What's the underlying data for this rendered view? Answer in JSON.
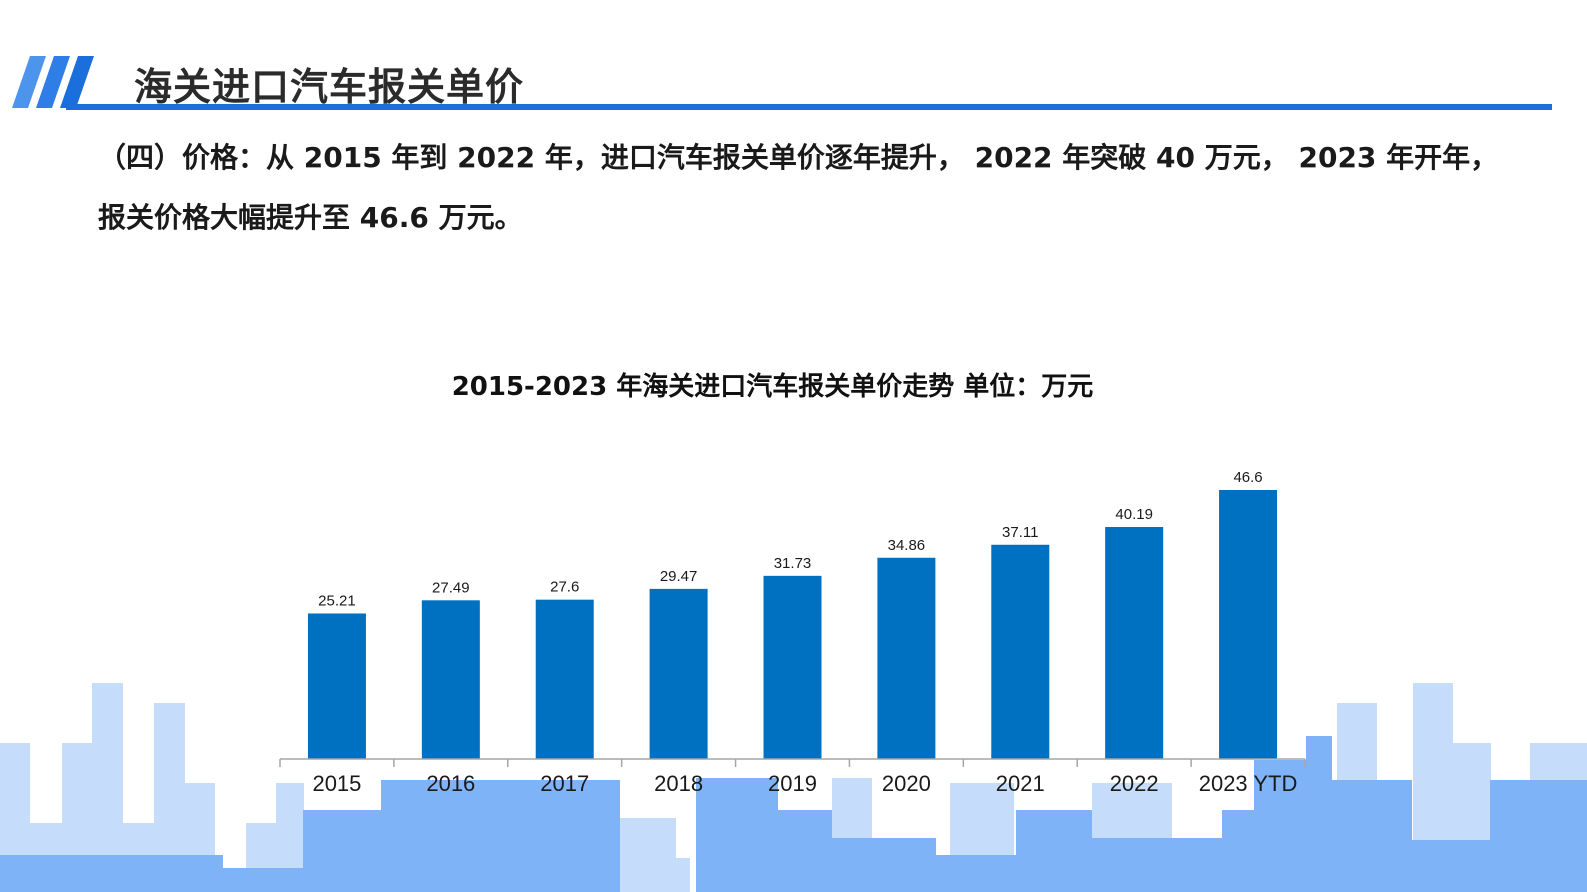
{
  "header": {
    "title": "海关进口汽车报关单价"
  },
  "intro": {
    "text": "（四）价格：从 2015 年到 2022 年，进口汽车报关单价逐年提升， 2022 年突破 40 万元， 2023 年开年，报关价格大幅提升至 46.6 万元。"
  },
  "colors": {
    "accent": "#1b6fdc",
    "bar": "#0070c0",
    "skyline_light": "#c6dcfb",
    "skyline_mid": "#7eb3f7"
  },
  "chart_data": {
    "type": "bar",
    "title": "2015-2023 年海关进口汽车报关单价走势 单位：万元",
    "categories": [
      "2015",
      "2016",
      "2017",
      "2018",
      "2019",
      "2020",
      "2021",
      "2022",
      "2023 YTD"
    ],
    "values": [
      25.21,
      27.49,
      27.6,
      29.47,
      31.73,
      34.86,
      37.11,
      40.19,
      46.6
    ],
    "value_labels": [
      "25.21",
      "27.49",
      "27.6",
      "29.47",
      "31.73",
      "34.86",
      "37.11",
      "40.19",
      "46.6"
    ],
    "xlabel": "",
    "ylabel": "",
    "ylim": [
      0,
      46.6
    ],
    "grid": false,
    "legend": "none",
    "color": "#0070c0"
  }
}
